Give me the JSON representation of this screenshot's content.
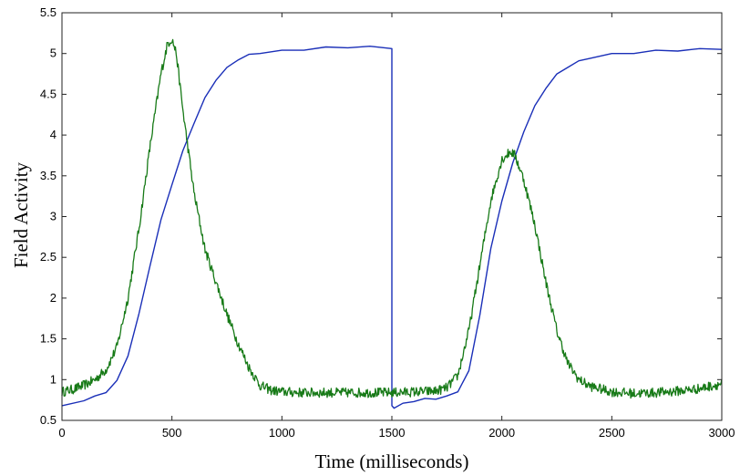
{
  "chart_data": {
    "type": "line",
    "title": "",
    "xlabel": "Time (milliseconds)",
    "ylabel": "Field Activity",
    "xlim": [
      0,
      3000
    ],
    "ylim": [
      0.5,
      5.5
    ],
    "grid": false,
    "x_ticks": [
      0,
      500,
      1000,
      1500,
      2000,
      2500,
      3000
    ],
    "y_ticks": [
      0.5,
      1,
      1.5,
      2,
      2.5,
      3,
      3.5,
      4,
      4.5,
      5,
      5.5
    ],
    "x_tick_labels": [
      "0",
      "500",
      "1000",
      "1500",
      "2000",
      "2500",
      "3000"
    ],
    "y_tick_labels": [
      "0.5",
      "1",
      "1.5",
      "2",
      "2.5",
      "3",
      "3.5",
      "4",
      "4.5",
      "5",
      "5.5"
    ],
    "series": [
      {
        "color": "#1a2fb8",
        "x": [
          0,
          100,
          150,
          200,
          250,
          300,
          350,
          400,
          450,
          500,
          550,
          600,
          650,
          700,
          750,
          800,
          850,
          900,
          1000,
          1100,
          1200,
          1300,
          1400,
          1500,
          1500,
          1510,
          1550,
          1600,
          1650,
          1700,
          1750,
          1800,
          1850,
          1900,
          1950,
          2000,
          2050,
          2100,
          2150,
          2200,
          2250,
          2300,
          2350,
          2400,
          2500,
          2600,
          2700,
          2800,
          2900,
          3000
        ],
        "y": [
          0.67,
          0.75,
          0.79,
          0.85,
          0.98,
          1.3,
          1.8,
          2.4,
          2.95,
          3.4,
          3.8,
          4.15,
          4.45,
          4.68,
          4.82,
          4.93,
          4.98,
          5.01,
          5.03,
          5.05,
          5.07,
          5.08,
          5.08,
          5.07,
          0.67,
          0.66,
          0.7,
          0.74,
          0.76,
          0.77,
          0.79,
          0.86,
          1.1,
          1.8,
          2.6,
          3.2,
          3.65,
          4.05,
          4.35,
          4.58,
          4.74,
          4.84,
          4.9,
          4.95,
          4.99,
          5.01,
          5.03,
          5.04,
          5.05,
          5.06
        ]
      },
      {
        "color": "#177a17",
        "x": [
          0,
          50,
          100,
          150,
          200,
          250,
          300,
          350,
          400,
          450,
          480,
          500,
          520,
          550,
          600,
          650,
          700,
          750,
          800,
          850,
          900,
          950,
          1000,
          1100,
          1200,
          1300,
          1400,
          1500,
          1600,
          1700,
          1750,
          1800,
          1850,
          1900,
          1950,
          2000,
          2040,
          2060,
          2100,
          2150,
          2200,
          2250,
          2300,
          2350,
          2400,
          2500,
          2600,
          2700,
          2800,
          2900,
          3000
        ],
        "y": [
          0.85,
          0.88,
          0.93,
          1.0,
          1.12,
          1.4,
          2.0,
          2.85,
          3.85,
          4.75,
          5.12,
          5.18,
          5.0,
          4.3,
          3.3,
          2.6,
          2.2,
          1.8,
          1.45,
          1.15,
          0.93,
          0.87,
          0.85,
          0.84,
          0.84,
          0.84,
          0.84,
          0.84,
          0.85,
          0.86,
          0.9,
          1.05,
          1.6,
          2.4,
          3.2,
          3.7,
          3.8,
          3.75,
          3.45,
          2.9,
          2.2,
          1.6,
          1.2,
          1.0,
          0.92,
          0.85,
          0.83,
          0.84,
          0.86,
          0.89,
          0.95
        ],
        "noise": 0.06
      }
    ]
  }
}
